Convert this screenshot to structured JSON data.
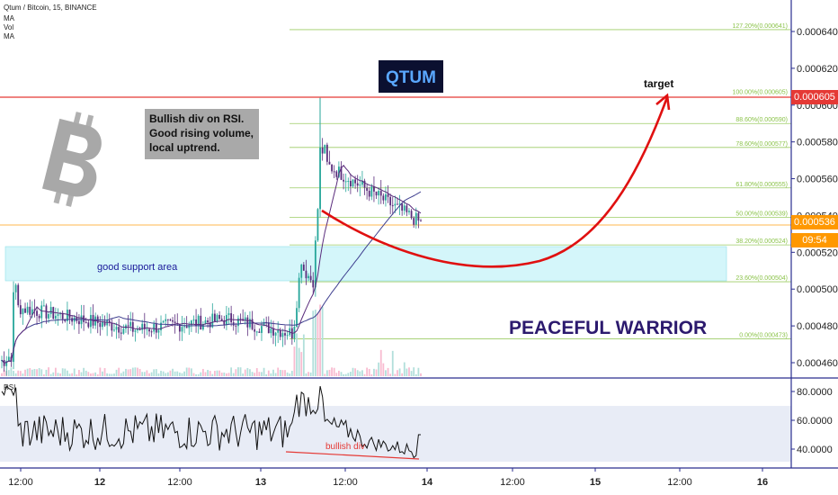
{
  "header": {
    "symbol": "Qtum / Bitcoin, 15, BINANCE",
    "indicators": [
      "MA",
      "Vol",
      "MA"
    ]
  },
  "annotations": {
    "title_box": "QTUM",
    "target": "target",
    "note_lines": [
      "Bullish div on RSI.",
      "Good rising volume,",
      "local uptrend."
    ],
    "support": "good support area",
    "author": "PEACEFUL WARRIOR",
    "rsi_div": "bullish div"
  },
  "price_tags": {
    "target": {
      "value": "0.000605",
      "color": "#e53935"
    },
    "last": {
      "value": "0.000536",
      "color": "#ff9800"
    },
    "countdown": "09:54"
  },
  "chart_data": {
    "type": "candlestick",
    "price_axis": {
      "ticks": [
        "0.000640",
        "0.000620",
        "0.000600",
        "0.000580",
        "0.000560",
        "0.000540",
        "0.000520",
        "0.000500",
        "0.000480",
        "0.000460"
      ],
      "values": [
        0.00064,
        0.00062,
        0.0006,
        0.00058,
        0.00056,
        0.00054,
        0.00052,
        0.0005,
        0.00048,
        0.00046
      ],
      "range": [
        0.000452,
        0.00066
      ]
    },
    "rsi_axis": {
      "label": "RSI",
      "ticks": [
        "80.0000",
        "60.0000",
        "40.0000"
      ],
      "values": [
        80,
        60,
        40
      ],
      "range": [
        28,
        90
      ],
      "band": [
        30,
        70
      ]
    },
    "time_axis": [
      "12:00",
      "12",
      "12:00",
      "13",
      "12:00",
      "14",
      "12:00",
      "15",
      "12:00",
      "16"
    ],
    "fib_levels": [
      {
        "label": "127.20%(0.000641)",
        "value": 0.000641
      },
      {
        "label": "100.00%(0.000605)",
        "value": 0.000605
      },
      {
        "label": "88.60%(0.000590)",
        "value": 0.00059
      },
      {
        "label": "78.60%(0.000577)",
        "value": 0.000577
      },
      {
        "label": "61.80%(0.000555)",
        "value": 0.000555
      },
      {
        "label": "50.00%(0.000539)",
        "value": 0.000539
      },
      {
        "label": "38.20%(0.000524)",
        "value": 0.000524
      },
      {
        "label": "23.60%(0.000504)",
        "value": 0.000504
      },
      {
        "label": "0.00%(0.000473)",
        "value": 0.000473
      }
    ],
    "support_zone": [
      0.000504,
      0.000524
    ],
    "key_prices": {
      "start": 0.00046,
      "pre_breakout": 0.000476,
      "breakout_low": 0.000503,
      "peak": 0.000604,
      "last": 0.000536,
      "target": 0.000605
    },
    "colors": {
      "up": "#26a69a",
      "down": "#5a2c7c",
      "ma_long": "#3f3f8f",
      "fib": "#8bc34a",
      "arc": "#e01010",
      "rsi": "#111111"
    }
  }
}
